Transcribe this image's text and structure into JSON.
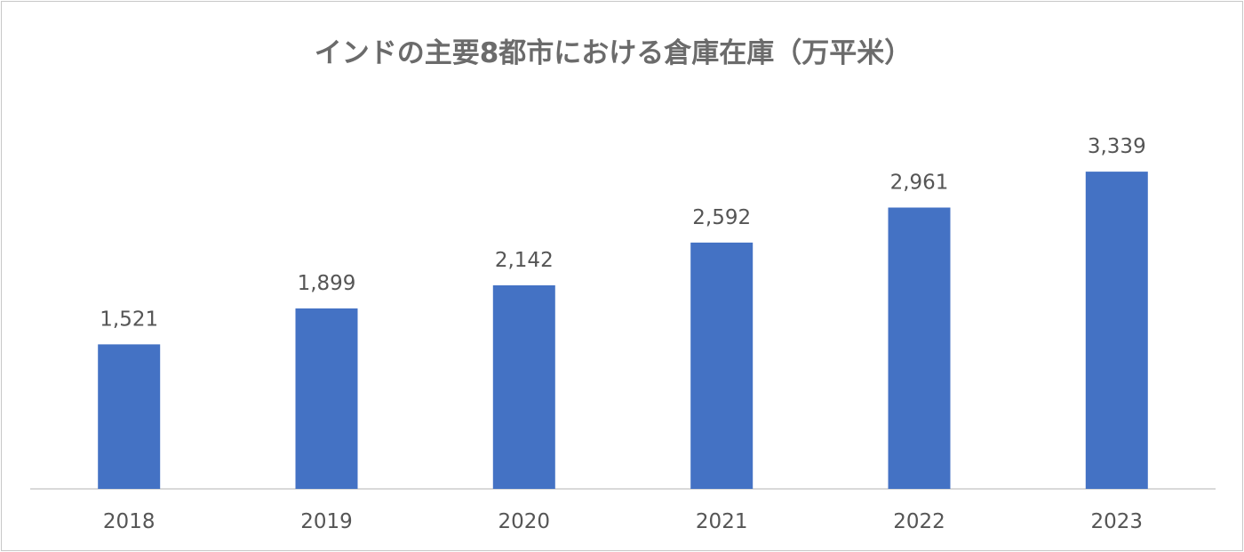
{
  "chart_data": {
    "type": "bar",
    "title": "インドの主要8都市における倉庫在庫（万平米）",
    "xlabel": "",
    "ylabel": "",
    "categories": [
      "2018",
      "2019",
      "2020",
      "2021",
      "2022",
      "2023"
    ],
    "values": [
      1521,
      1899,
      2142,
      2592,
      2961,
      3339
    ],
    "value_labels": [
      "1,521",
      "1,899",
      "2,142",
      "2,592",
      "2,961",
      "3,339"
    ],
    "ylim": [
      0,
      4000
    ],
    "grid": false,
    "legend": "none",
    "bar_color": "#4472C4"
  }
}
